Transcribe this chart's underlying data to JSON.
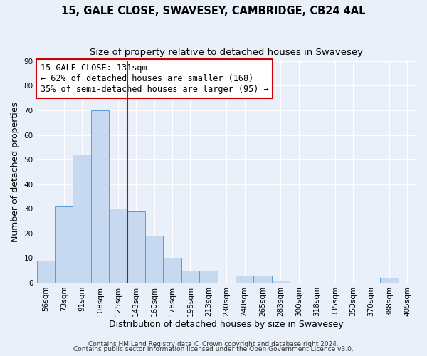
{
  "title": "15, GALE CLOSE, SWAVESEY, CAMBRIDGE, CB24 4AL",
  "subtitle": "Size of property relative to detached houses in Swavesey",
  "xlabel": "Distribution of detached houses by size in Swavesey",
  "ylabel": "Number of detached properties",
  "bar_labels": [
    "56sqm",
    "73sqm",
    "91sqm",
    "108sqm",
    "125sqm",
    "143sqm",
    "160sqm",
    "178sqm",
    "195sqm",
    "213sqm",
    "230sqm",
    "248sqm",
    "265sqm",
    "283sqm",
    "300sqm",
    "318sqm",
    "335sqm",
    "353sqm",
    "370sqm",
    "388sqm",
    "405sqm"
  ],
  "bar_values": [
    9,
    31,
    52,
    70,
    30,
    29,
    19,
    10,
    5,
    5,
    0,
    3,
    3,
    1,
    0,
    0,
    0,
    0,
    0,
    2,
    0
  ],
  "bar_color": "#c6d9f1",
  "bar_edge_color": "#5b9bd5",
  "vline_x": 4.5,
  "vline_color": "#cc0000",
  "annotation_line1": "15 GALE CLOSE: 131sqm",
  "annotation_line2": "← 62% of detached houses are smaller (168)",
  "annotation_line3": "35% of semi-detached houses are larger (95) →",
  "annotation_box_color": "#ffffff",
  "annotation_box_edge_color": "#cc0000",
  "ylim": [
    0,
    90
  ],
  "yticks": [
    0,
    10,
    20,
    30,
    40,
    50,
    60,
    70,
    80,
    90
  ],
  "footer_line1": "Contains HM Land Registry data © Crown copyright and database right 2024.",
  "footer_line2": "Contains public sector information licensed under the Open Government Licence v3.0.",
  "bg_color": "#eaf0fa",
  "grid_color": "#ffffff",
  "title_fontsize": 10.5,
  "subtitle_fontsize": 9.5,
  "axis_label_fontsize": 9,
  "tick_fontsize": 7.5,
  "annotation_fontsize": 8.5,
  "footer_fontsize": 6.5
}
